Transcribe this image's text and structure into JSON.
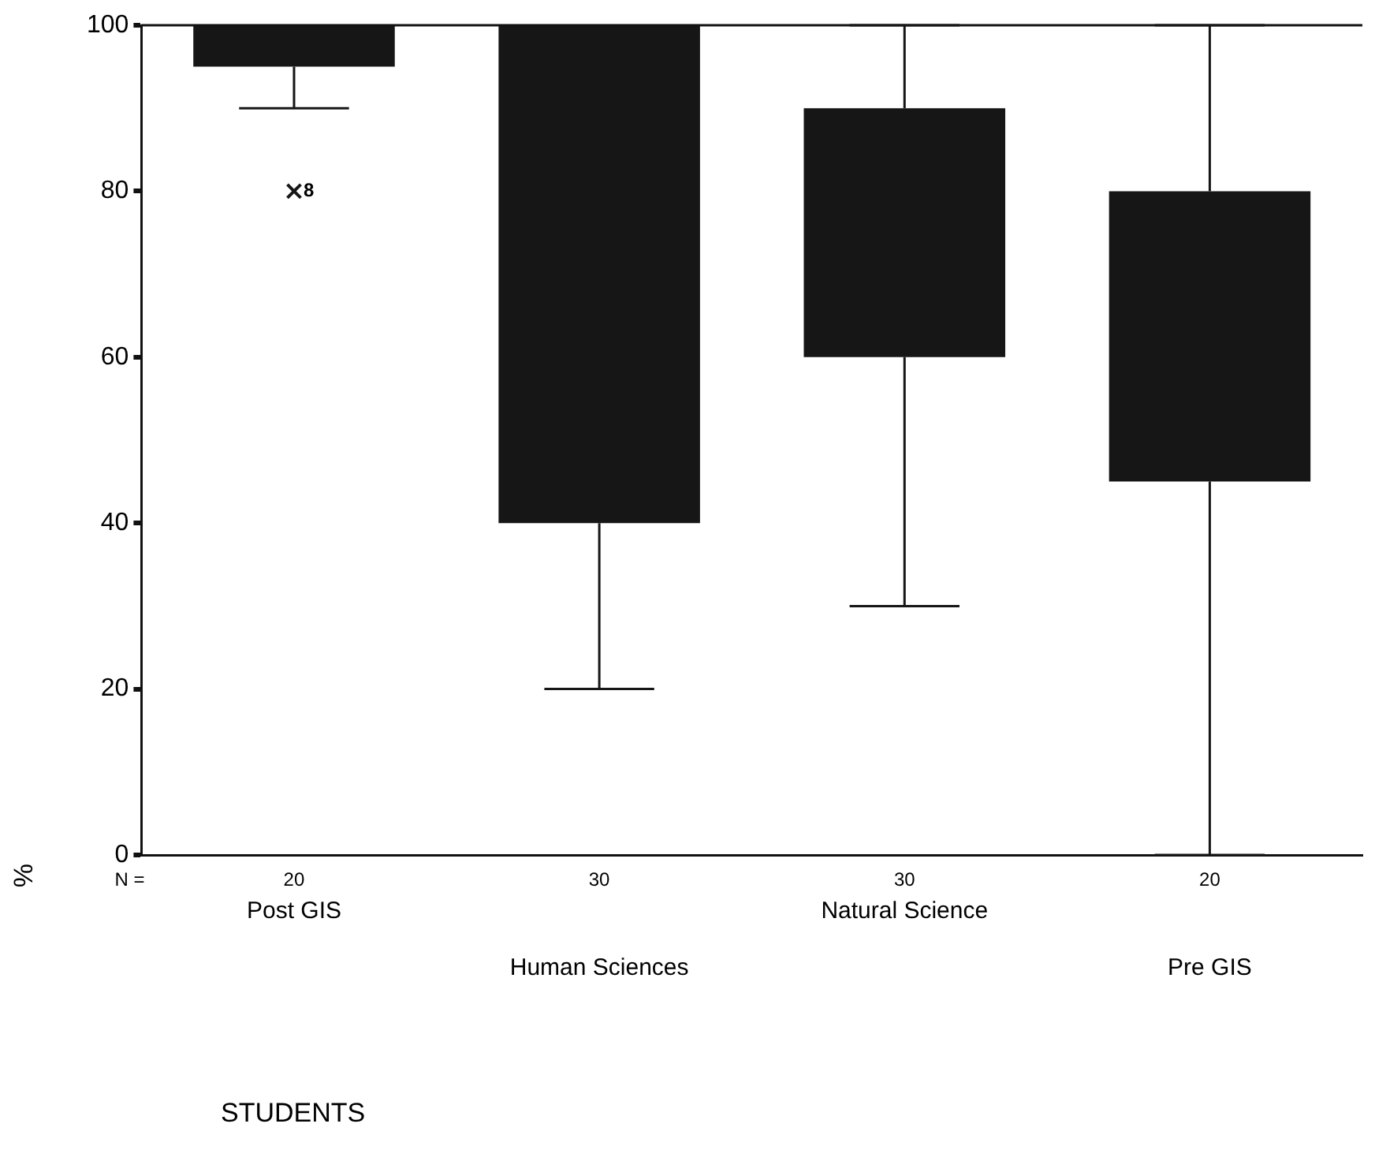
{
  "chart_data": {
    "type": "box",
    "xlabel": "STUDENTS",
    "ylabel": "%",
    "categories": [
      "Post GIS",
      "Human Sciences",
      "Natural Science",
      "Pre GIS"
    ],
    "color": "#161616",
    "boxes": [
      {
        "low": 90,
        "q1": 95,
        "median": null,
        "q3": 100,
        "high": 100,
        "outliers": [
          80
        ]
      },
      {
        "low": 20,
        "q1": 40,
        "median": null,
        "q3": 100,
        "high": 100
      },
      {
        "low": 30,
        "q1": 60,
        "median": null,
        "q3": 90,
        "high": 100
      },
      {
        "low": 0,
        "q1": 45,
        "median": null,
        "q3": 80,
        "high": 100
      }
    ],
    "ylim": [
      0,
      100
    ],
    "yticks": [
      0,
      20,
      40,
      60,
      80,
      100
    ],
    "grid": false,
    "legend": false,
    "annotations": [
      "8",
      "N =",
      "20",
      "30",
      "30",
      "20"
    ]
  }
}
